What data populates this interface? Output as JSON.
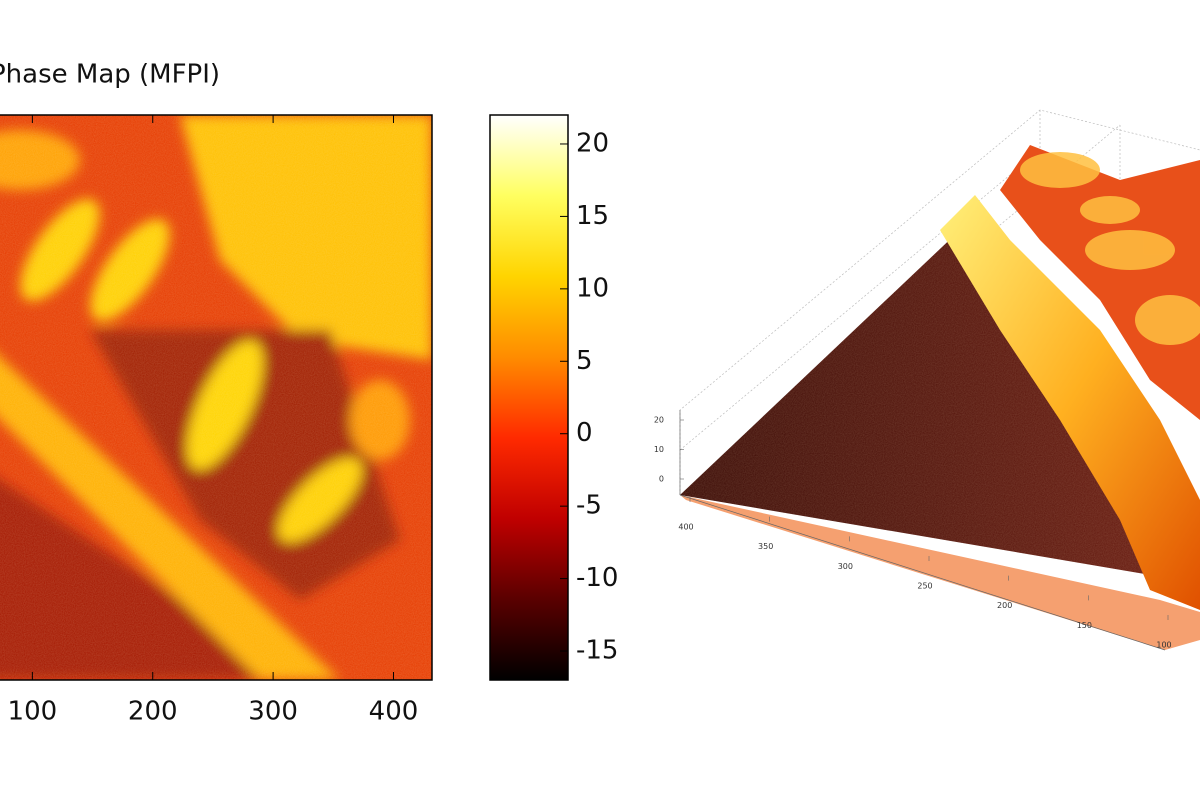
{
  "chart_data": [
    {
      "type": "heatmap",
      "title": "Phase Map (MFPI)",
      "xlim": [
        0,
        432
      ],
      "xticks": [
        100,
        200,
        300,
        400
      ],
      "clim": [
        -17,
        22
      ],
      "cticks": [
        -15,
        -10,
        -5,
        0,
        5,
        10,
        15,
        20
      ],
      "colormap": [
        "#000000",
        "#5a0000",
        "#c00000",
        "#ff2a00",
        "#ff8c00",
        "#ffd400",
        "#ffff60",
        "#ffffff"
      ]
    },
    {
      "type": "surface",
      "ylim": [
        100,
        400
      ],
      "yticks": [
        400,
        350,
        300,
        250,
        200,
        150,
        100
      ],
      "zlim": [
        0,
        20
      ],
      "zticks": [
        0,
        10,
        20
      ]
    }
  ]
}
